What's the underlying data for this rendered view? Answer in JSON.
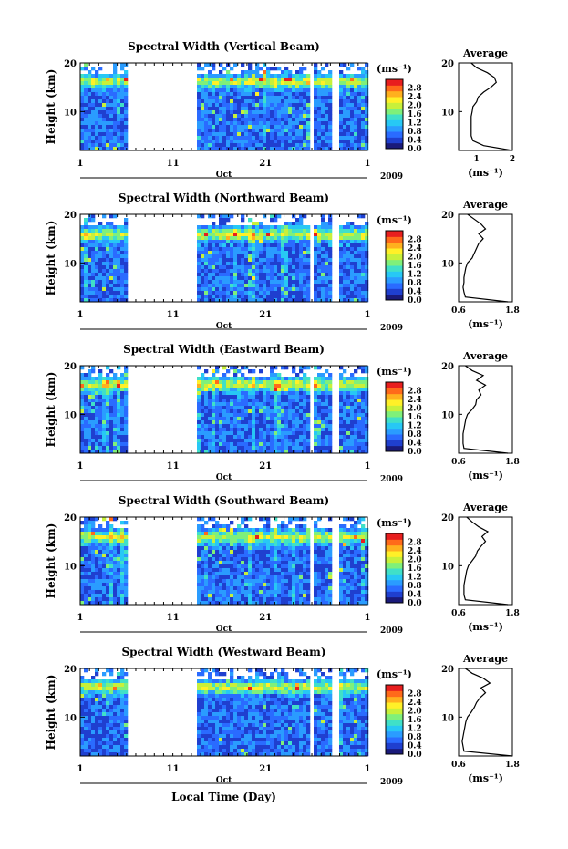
{
  "figure": {
    "xlabel": "Local Time (Day)",
    "month_label": "Oct",
    "year_label": "2009",
    "cbar_unit": "(ms⁻¹)",
    "avg_title": "Average",
    "avg_xlabel": "(ms⁻¹)",
    "ylabel": "Height (km)"
  },
  "chart_data": [
    {
      "type": "heatmap",
      "title": "Spectral Width (Vertical Beam)",
      "ylabel": "Height (km)",
      "x_ticks": [
        "1",
        "11",
        "21",
        "1"
      ],
      "y_ticks": [
        "10",
        "20"
      ],
      "ylim": [
        2,
        20
      ],
      "data_gap_days": [
        5.5,
        12.5
      ],
      "colorbar": {
        "ticks": [
          "0.0",
          "0.4",
          "0.8",
          "1.2",
          "1.6",
          "2.0",
          "2.4",
          "2.8"
        ],
        "range": [
          0,
          3.2
        ]
      },
      "average": {
        "title": "Average",
        "xlim": [
          0.5,
          2.0
        ],
        "xticks": [
          "1",
          "2"
        ],
        "height": [
          2,
          3,
          4,
          5,
          6,
          7,
          8,
          9,
          10,
          11,
          12,
          13,
          14,
          15,
          16,
          17,
          18,
          19,
          20
        ],
        "value": [
          2.0,
          1.2,
          0.9,
          0.85,
          0.85,
          0.85,
          0.85,
          0.85,
          0.88,
          0.9,
          1.0,
          1.05,
          1.2,
          1.4,
          1.55,
          1.5,
          1.3,
          1.0,
          0.85
        ]
      }
    },
    {
      "type": "heatmap",
      "title": "Spectral Width (Northward Beam)",
      "ylabel": "Height (km)",
      "x_ticks": [
        "1",
        "11",
        "21",
        "1"
      ],
      "y_ticks": [
        "10",
        "20"
      ],
      "ylim": [
        2,
        20
      ],
      "data_gap_days": [
        5.5,
        12.5
      ],
      "colorbar": {
        "ticks": [
          "0.0",
          "0.4",
          "0.8",
          "1.2",
          "1.6",
          "2.0",
          "2.4",
          "2.8"
        ],
        "range": [
          0,
          3.2
        ]
      },
      "average": {
        "title": "Average",
        "xlim": [
          0.6,
          1.8
        ],
        "xticks": [
          "0.6",
          "1.8"
        ],
        "height": [
          2,
          3,
          4,
          5,
          6,
          7,
          8,
          9,
          10,
          11,
          12,
          13,
          14,
          15,
          16,
          17,
          18,
          19,
          20
        ],
        "value": [
          1.7,
          0.75,
          0.72,
          0.7,
          0.72,
          0.72,
          0.74,
          0.76,
          0.8,
          0.9,
          0.95,
          1.0,
          1.05,
          1.15,
          1.05,
          1.2,
          1.1,
          0.95,
          0.8
        ]
      }
    },
    {
      "type": "heatmap",
      "title": "Spectral Width (Eastward Beam)",
      "ylabel": "Height (km)",
      "x_ticks": [
        "1",
        "11",
        "21",
        "1"
      ],
      "y_ticks": [
        "10",
        "20"
      ],
      "ylim": [
        2,
        20
      ],
      "data_gap_days": [
        5.5,
        12.5
      ],
      "colorbar": {
        "ticks": [
          "0.0",
          "0.4",
          "0.8",
          "1.2",
          "1.6",
          "2.0",
          "2.4",
          "2.8"
        ],
        "range": [
          0,
          3.2
        ]
      },
      "average": {
        "title": "Average",
        "xlim": [
          0.6,
          1.8
        ],
        "xticks": [
          "0.6",
          "1.8"
        ],
        "height": [
          2,
          3,
          4,
          5,
          6,
          7,
          8,
          9,
          10,
          11,
          12,
          13,
          14,
          15,
          16,
          17,
          18,
          19,
          20
        ],
        "value": [
          1.7,
          0.72,
          0.7,
          0.7,
          0.7,
          0.72,
          0.74,
          0.76,
          0.8,
          0.9,
          0.98,
          1.0,
          1.1,
          1.05,
          1.2,
          1.0,
          1.15,
          0.9,
          0.75
        ]
      }
    },
    {
      "type": "heatmap",
      "title": "Spectral Width (Southward Beam)",
      "ylabel": "Height (km)",
      "x_ticks": [
        "1",
        "11",
        "21",
        "1"
      ],
      "y_ticks": [
        "10",
        "20"
      ],
      "ylim": [
        2,
        20
      ],
      "data_gap_days": [
        5.5,
        12.5
      ],
      "colorbar": {
        "ticks": [
          "0.0",
          "0.4",
          "0.8",
          "1.2",
          "1.6",
          "2.0",
          "2.4",
          "2.8"
        ],
        "range": [
          0,
          3.2
        ]
      },
      "average": {
        "title": "Average",
        "xlim": [
          0.6,
          1.8
        ],
        "xticks": [
          "0.6",
          "1.8"
        ],
        "height": [
          2,
          3,
          4,
          5,
          6,
          7,
          8,
          9,
          10,
          11,
          12,
          13,
          14,
          15,
          16,
          17,
          18,
          19,
          20
        ],
        "value": [
          1.7,
          0.75,
          0.72,
          0.72,
          0.72,
          0.74,
          0.76,
          0.78,
          0.82,
          0.9,
          0.98,
          1.02,
          1.1,
          1.2,
          1.12,
          1.25,
          1.05,
          0.9,
          0.78
        ]
      }
    },
    {
      "type": "heatmap",
      "title": "Spectral Width (Westward Beam)",
      "ylabel": "Height (km)",
      "x_ticks": [
        "1",
        "11",
        "21",
        "1"
      ],
      "y_ticks": [
        "10",
        "20"
      ],
      "ylim": [
        2,
        20
      ],
      "data_gap_days": [
        5.5,
        12.5
      ],
      "colorbar": {
        "ticks": [
          "0.0",
          "0.4",
          "0.8",
          "1.2",
          "1.6",
          "2.0",
          "2.4",
          "2.8"
        ],
        "range": [
          0,
          3.2
        ]
      },
      "average": {
        "title": "Average",
        "xlim": [
          0.6,
          1.8
        ],
        "xticks": [
          "0.6",
          "1.8"
        ],
        "height": [
          2,
          3,
          4,
          5,
          6,
          7,
          8,
          9,
          10,
          11,
          12,
          13,
          14,
          15,
          16,
          17,
          18,
          19,
          20
        ],
        "value": [
          1.8,
          0.72,
          0.7,
          0.68,
          0.7,
          0.72,
          0.74,
          0.76,
          0.8,
          0.88,
          0.95,
          1.0,
          1.08,
          1.2,
          1.1,
          1.3,
          1.15,
          0.9,
          0.75
        ]
      }
    }
  ]
}
